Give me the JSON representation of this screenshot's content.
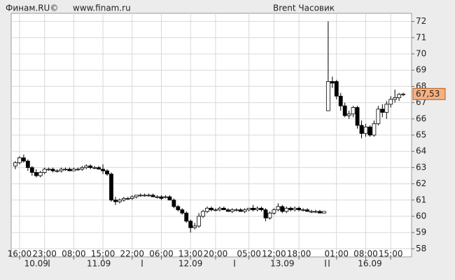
{
  "chart_data": {
    "type": "candlestick",
    "brand": "Финам.RU©",
    "site": "www.finam.ru",
    "title": "Brent Часовик",
    "ylim": [
      57.5,
      72.5
    ],
    "yticks": [
      58,
      59,
      60,
      61,
      62,
      63,
      64,
      65,
      66,
      67,
      68,
      69,
      70,
      71,
      72
    ],
    "grid": true,
    "xlim": [
      -1,
      95
    ],
    "xticks": [
      {
        "value": 1,
        "label": "16:00"
      },
      {
        "value": 7,
        "label": "23:00"
      },
      {
        "value": 14,
        "label": "08:00"
      },
      {
        "value": 21,
        "label": "15:00"
      },
      {
        "value": 28,
        "label": "22:00"
      },
      {
        "value": 35,
        "label": "06:00"
      },
      {
        "value": 42,
        "label": "13:00"
      },
      {
        "value": 48,
        "label": "20:00"
      },
      {
        "value": 56,
        "label": "05:00"
      },
      {
        "value": 62,
        "label": "12:00"
      },
      {
        "value": 68,
        "label": "18:00"
      },
      {
        "value": 77,
        "label": "01:00"
      },
      {
        "value": 84,
        "label": "08:00"
      },
      {
        "value": 90,
        "label": "15:00"
      }
    ],
    "date_labels": [
      {
        "value": 5,
        "label": "10.09"
      },
      {
        "value": 20,
        "label": "11.09"
      },
      {
        "value": 42,
        "label": "12.09"
      },
      {
        "value": 64,
        "label": "13.09"
      },
      {
        "value": 85,
        "label": "16.09"
      }
    ],
    "up_color": "#ffffff",
    "down_color": "#000000",
    "last_price": {
      "value": 67.53,
      "label": "67,53"
    },
    "ohlc": [
      [
        63.1,
        63.4,
        62.9,
        63.3
      ],
      [
        63.3,
        63.7,
        63.2,
        63.6
      ],
      [
        63.6,
        63.8,
        63.3,
        63.4
      ],
      [
        63.4,
        63.5,
        62.8,
        63.0
      ],
      [
        63.0,
        63.1,
        62.5,
        62.7
      ],
      [
        62.7,
        62.9,
        62.4,
        62.5
      ],
      [
        62.5,
        62.8,
        62.4,
        62.7
      ],
      [
        62.7,
        63.0,
        62.6,
        62.9
      ],
      [
        62.9,
        63.0,
        62.8,
        62.9
      ],
      [
        62.9,
        63.0,
        62.7,
        62.8
      ],
      [
        62.8,
        62.9,
        62.7,
        62.8
      ],
      [
        62.8,
        63.0,
        62.7,
        62.9
      ],
      [
        62.9,
        63.0,
        62.8,
        62.9
      ],
      [
        62.9,
        63.0,
        62.8,
        62.8
      ],
      [
        62.8,
        63.0,
        62.8,
        62.9
      ],
      [
        62.9,
        63.0,
        62.8,
        62.9
      ],
      [
        62.9,
        63.1,
        62.8,
        63.0
      ],
      [
        63.0,
        63.2,
        62.9,
        63.1
      ],
      [
        63.1,
        63.2,
        62.9,
        63.0
      ],
      [
        63.0,
        63.1,
        62.9,
        63.0
      ],
      [
        63.0,
        63.1,
        62.9,
        62.9
      ],
      [
        62.9,
        63.2,
        62.6,
        62.8
      ],
      [
        62.8,
        62.9,
        62.5,
        62.6
      ],
      [
        62.6,
        62.7,
        60.9,
        61.0
      ],
      [
        61.0,
        61.2,
        60.7,
        60.9
      ],
      [
        60.9,
        61.1,
        60.8,
        61.0
      ],
      [
        61.0,
        61.2,
        60.9,
        61.1
      ],
      [
        61.1,
        61.2,
        61.0,
        61.1
      ],
      [
        61.1,
        61.3,
        61.0,
        61.2
      ],
      [
        61.2,
        61.3,
        61.1,
        61.3
      ],
      [
        61.3,
        61.4,
        61.2,
        61.3
      ],
      [
        61.3,
        61.4,
        61.2,
        61.3
      ],
      [
        61.3,
        61.4,
        61.2,
        61.3
      ],
      [
        61.3,
        61.4,
        61.2,
        61.2
      ],
      [
        61.2,
        61.3,
        61.1,
        61.2
      ],
      [
        61.2,
        61.3,
        61.0,
        61.1
      ],
      [
        61.2,
        61.3,
        61.1,
        61.2
      ],
      [
        61.2,
        61.3,
        61.0,
        61.0
      ],
      [
        61.0,
        61.1,
        60.5,
        60.6
      ],
      [
        60.6,
        60.7,
        60.3,
        60.4
      ],
      [
        60.4,
        60.5,
        60.1,
        60.2
      ],
      [
        60.2,
        60.3,
        59.6,
        59.7
      ],
      [
        59.7,
        59.8,
        59.0,
        59.3
      ],
      [
        59.3,
        59.6,
        59.2,
        59.4
      ],
      [
        59.4,
        60.2,
        59.3,
        60.0
      ],
      [
        60.0,
        60.4,
        59.9,
        60.3
      ],
      [
        60.3,
        60.6,
        60.2,
        60.5
      ],
      [
        60.5,
        60.6,
        60.3,
        60.4
      ],
      [
        60.4,
        60.5,
        60.3,
        60.4
      ],
      [
        60.4,
        60.6,
        60.3,
        60.5
      ],
      [
        60.5,
        60.6,
        60.4,
        60.4
      ],
      [
        60.4,
        60.5,
        60.3,
        60.3
      ],
      [
        60.3,
        60.5,
        60.2,
        60.4
      ],
      [
        60.4,
        60.5,
        60.3,
        60.4
      ],
      [
        60.4,
        60.5,
        60.3,
        60.3
      ],
      [
        60.3,
        60.5,
        60.2,
        60.4
      ],
      [
        60.4,
        60.5,
        60.3,
        60.5
      ],
      [
        60.5,
        60.7,
        60.3,
        60.4
      ],
      [
        60.4,
        60.6,
        60.3,
        60.5
      ],
      [
        60.5,
        60.6,
        60.3,
        60.4
      ],
      [
        60.4,
        60.5,
        59.7,
        59.9
      ],
      [
        59.9,
        60.3,
        59.8,
        60.2
      ],
      [
        60.2,
        60.5,
        60.1,
        60.4
      ],
      [
        60.4,
        60.8,
        60.3,
        60.6
      ],
      [
        60.6,
        60.7,
        60.2,
        60.3
      ],
      [
        60.3,
        60.6,
        60.2,
        60.5
      ],
      [
        60.5,
        60.6,
        60.3,
        60.4
      ],
      [
        60.4,
        60.6,
        60.3,
        60.5
      ],
      [
        60.5,
        60.6,
        60.3,
        60.4
      ],
      [
        60.4,
        60.5,
        60.3,
        60.4
      ],
      [
        60.4,
        60.5,
        60.3,
        60.3
      ],
      [
        60.3,
        60.4,
        60.2,
        60.3
      ],
      [
        60.3,
        60.4,
        60.2,
        60.3
      ],
      [
        60.3,
        60.4,
        60.2,
        60.2
      ],
      [
        60.2,
        60.3,
        60.2,
        60.3
      ],
      [
        66.5,
        72.0,
        66.5,
        68.3
      ],
      [
        68.3,
        68.6,
        67.9,
        68.2
      ],
      [
        68.3,
        68.4,
        67.2,
        67.4
      ],
      [
        67.4,
        67.6,
        66.5,
        66.8
      ],
      [
        66.8,
        67.0,
        66.1,
        66.2
      ],
      [
        66.2,
        66.5,
        66.0,
        66.3
      ],
      [
        66.3,
        66.8,
        66.1,
        66.7
      ],
      [
        66.7,
        66.8,
        65.4,
        65.6
      ],
      [
        65.6,
        65.9,
        64.8,
        65.1
      ],
      [
        65.1,
        65.7,
        64.9,
        65.5
      ],
      [
        65.5,
        65.6,
        64.9,
        65.0
      ],
      [
        65.0,
        65.9,
        64.9,
        65.7
      ],
      [
        65.7,
        66.8,
        65.6,
        66.6
      ],
      [
        66.6,
        66.9,
        66.1,
        66.4
      ],
      [
        66.4,
        67.1,
        66.0,
        66.9
      ],
      [
        66.9,
        67.4,
        66.7,
        67.2
      ],
      [
        67.2,
        67.8,
        67.0,
        67.3
      ],
      [
        67.3,
        67.6,
        67.1,
        67.5
      ],
      [
        67.5,
        67.6,
        67.4,
        67.53
      ]
    ]
  }
}
